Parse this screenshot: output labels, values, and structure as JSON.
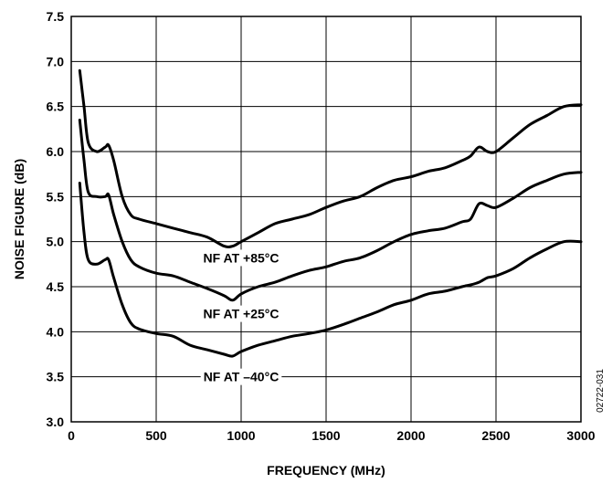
{
  "chart_data": {
    "type": "line",
    "xlabel": "FREQUENCY (MHz)",
    "ylabel": "NOISE FIGURE (dB)",
    "xlim": [
      0,
      3000
    ],
    "ylim": [
      3.0,
      7.5
    ],
    "xticks": [
      "0",
      "500",
      "1000",
      "1500",
      "2000",
      "2500",
      "3000"
    ],
    "yticks": [
      "3.0",
      "3.5",
      "4.0",
      "4.5",
      "5.0",
      "5.5",
      "6.0",
      "6.5",
      "7.0",
      "7.5"
    ],
    "grid": true,
    "figure_code": "02722-031",
    "series": [
      {
        "name": "NF AT +85°C",
        "x": [
          50,
          75,
          100,
          150,
          200,
          220,
          250,
          300,
          350,
          400,
          500,
          600,
          700,
          800,
          900,
          950,
          1000,
          1100,
          1200,
          1300,
          1400,
          1500,
          1600,
          1700,
          1800,
          1900,
          2000,
          2100,
          2200,
          2300,
          2350,
          2400,
          2450,
          2500,
          2600,
          2700,
          2800,
          2900,
          3000
        ],
        "y": [
          6.9,
          6.5,
          6.1,
          6.0,
          6.05,
          6.07,
          5.9,
          5.5,
          5.3,
          5.25,
          5.2,
          5.15,
          5.1,
          5.05,
          4.95,
          4.95,
          5.0,
          5.1,
          5.2,
          5.25,
          5.3,
          5.38,
          5.45,
          5.5,
          5.6,
          5.68,
          5.72,
          5.78,
          5.82,
          5.9,
          5.95,
          6.05,
          6.0,
          6.0,
          6.15,
          6.3,
          6.4,
          6.5,
          6.52
        ]
      },
      {
        "name": "NF AT +25°C",
        "x": [
          50,
          75,
          100,
          150,
          200,
          220,
          250,
          300,
          350,
          400,
          500,
          600,
          700,
          800,
          900,
          950,
          1000,
          1100,
          1200,
          1300,
          1400,
          1500,
          1600,
          1700,
          1800,
          1900,
          2000,
          2100,
          2200,
          2300,
          2350,
          2400,
          2450,
          2500,
          2600,
          2700,
          2800,
          2900,
          3000
        ],
        "y": [
          6.35,
          5.9,
          5.55,
          5.5,
          5.5,
          5.52,
          5.3,
          5.0,
          4.8,
          4.72,
          4.65,
          4.62,
          4.55,
          4.48,
          4.4,
          4.35,
          4.42,
          4.5,
          4.55,
          4.62,
          4.68,
          4.72,
          4.78,
          4.82,
          4.9,
          5.0,
          5.08,
          5.12,
          5.15,
          5.22,
          5.25,
          5.42,
          5.4,
          5.38,
          5.48,
          5.6,
          5.68,
          5.75,
          5.77
        ]
      },
      {
        "name": "NF AT –40°C",
        "x": [
          50,
          75,
          100,
          150,
          200,
          220,
          250,
          300,
          350,
          400,
          500,
          600,
          700,
          800,
          900,
          950,
          1000,
          1100,
          1200,
          1300,
          1400,
          1500,
          1600,
          1700,
          1800,
          1900,
          2000,
          2100,
          2200,
          2300,
          2350,
          2400,
          2450,
          2500,
          2600,
          2700,
          2800,
          2900,
          3000
        ],
        "y": [
          5.65,
          5.1,
          4.8,
          4.75,
          4.8,
          4.8,
          4.6,
          4.3,
          4.1,
          4.03,
          3.98,
          3.95,
          3.85,
          3.8,
          3.75,
          3.73,
          3.78,
          3.85,
          3.9,
          3.95,
          3.98,
          4.02,
          4.08,
          4.15,
          4.22,
          4.3,
          4.35,
          4.42,
          4.45,
          4.5,
          4.52,
          4.55,
          4.6,
          4.62,
          4.7,
          4.82,
          4.92,
          5.0,
          5.0
        ]
      }
    ],
    "annotations": [
      {
        "text": "NF AT +85°C",
        "x": 1000,
        "y": 4.82
      },
      {
        "text": "NF AT +25°C",
        "x": 1000,
        "y": 4.2
      },
      {
        "text": "NF AT –40°C",
        "x": 1000,
        "y": 3.5
      }
    ]
  }
}
